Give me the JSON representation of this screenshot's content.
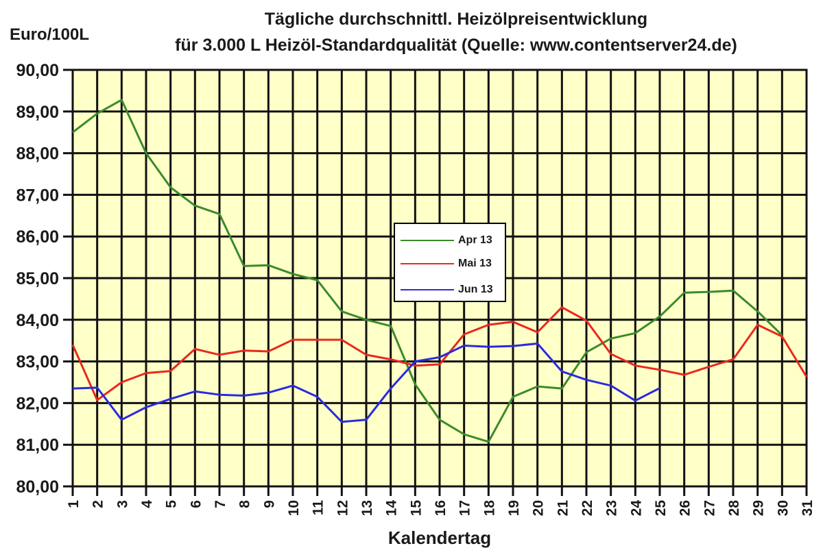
{
  "chart_data": {
    "type": "line",
    "title": "Tägliche durchschnittl. Heizölpreisentwicklung",
    "subtitle": "für 3.000 L Heizöl-Standardqualität (Quelle: www.contentserver24.de)",
    "xlabel": "Kalendertag",
    "ylabel": "Euro/100L",
    "ylim": [
      80,
      90
    ],
    "yticks": [
      "80,00",
      "81,00",
      "82,00",
      "83,00",
      "84,00",
      "85,00",
      "86,00",
      "87,00",
      "88,00",
      "89,00",
      "90,00"
    ],
    "x": [
      1,
      2,
      3,
      4,
      5,
      6,
      7,
      8,
      9,
      10,
      11,
      12,
      13,
      14,
      15,
      16,
      17,
      18,
      19,
      20,
      21,
      22,
      23,
      24,
      25,
      26,
      27,
      28,
      29,
      30,
      31
    ],
    "grid": true,
    "legend_position": "center",
    "plot_background": "#ffffc8",
    "series": [
      {
        "name": "Apr 13",
        "color": "#3a8a2a",
        "values": [
          88.5,
          88.95,
          89.28,
          88.0,
          87.18,
          86.74,
          86.54,
          85.29,
          85.31,
          85.1,
          84.95,
          84.2,
          84.0,
          83.85,
          82.45,
          81.6,
          81.25,
          81.07,
          82.15,
          82.4,
          82.35,
          83.22,
          83.55,
          83.68,
          84.08,
          84.65,
          84.67,
          84.7,
          84.2,
          83.63,
          null
        ]
      },
      {
        "name": "Mai 13",
        "color": "#e8281e",
        "values": [
          83.4,
          82.07,
          82.5,
          82.72,
          82.77,
          83.3,
          83.16,
          83.26,
          83.24,
          83.52,
          83.52,
          83.52,
          83.16,
          83.05,
          82.9,
          82.93,
          83.65,
          83.88,
          83.95,
          83.7,
          84.3,
          83.98,
          83.18,
          82.9,
          82.8,
          82.68,
          82.87,
          83.05,
          83.88,
          83.6,
          82.63
        ]
      },
      {
        "name": "Jun 13",
        "color": "#2a2ae0",
        "values": [
          82.35,
          82.37,
          81.6,
          81.9,
          82.1,
          82.28,
          82.2,
          82.18,
          82.25,
          82.42,
          82.15,
          81.55,
          81.6,
          82.35,
          83.0,
          83.1,
          83.38,
          83.35,
          83.37,
          83.43,
          82.76,
          82.56,
          82.42,
          82.06,
          82.36,
          null,
          null,
          null,
          null,
          null,
          null
        ]
      }
    ]
  }
}
